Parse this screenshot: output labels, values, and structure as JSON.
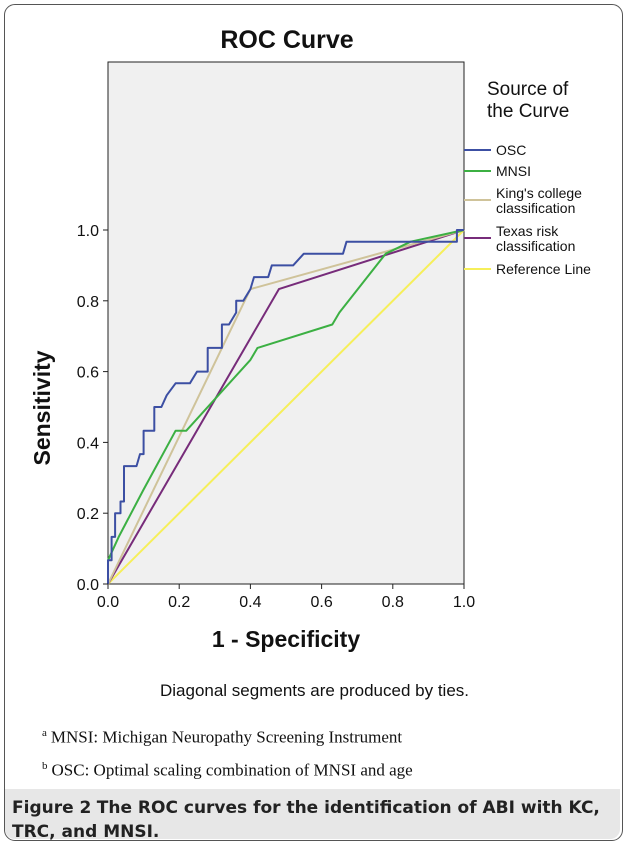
{
  "chart_data": {
    "type": "line",
    "title": "ROC Curve",
    "xlabel": "1 - Specificity",
    "ylabel": "Sensitivity",
    "xlim": [
      0,
      1
    ],
    "ylim": [
      0,
      1
    ],
    "xticks": [
      "0.0",
      "0.2",
      "0.4",
      "0.6",
      "0.8",
      "1.0"
    ],
    "yticks": [
      "0.0",
      "0.2",
      "0.4",
      "0.6",
      "0.8",
      "1.0"
    ],
    "grid": false,
    "legend_title": "Source of the Curve",
    "legend_position": "right",
    "series": [
      {
        "name": "OSC",
        "color": "#3c4fa3",
        "points": [
          [
            0,
            0
          ],
          [
            0,
            0.067
          ],
          [
            0.01,
            0.067
          ],
          [
            0.01,
            0.133
          ],
          [
            0.02,
            0.133
          ],
          [
            0.02,
            0.2
          ],
          [
            0.035,
            0.2
          ],
          [
            0.035,
            0.233
          ],
          [
            0.045,
            0.233
          ],
          [
            0.045,
            0.333
          ],
          [
            0.08,
            0.333
          ],
          [
            0.09,
            0.367
          ],
          [
            0.1,
            0.367
          ],
          [
            0.1,
            0.433
          ],
          [
            0.13,
            0.433
          ],
          [
            0.13,
            0.5
          ],
          [
            0.15,
            0.5
          ],
          [
            0.165,
            0.533
          ],
          [
            0.19,
            0.567
          ],
          [
            0.23,
            0.567
          ],
          [
            0.25,
            0.6
          ],
          [
            0.28,
            0.6
          ],
          [
            0.28,
            0.667
          ],
          [
            0.32,
            0.667
          ],
          [
            0.32,
            0.733
          ],
          [
            0.34,
            0.733
          ],
          [
            0.36,
            0.767
          ],
          [
            0.36,
            0.8
          ],
          [
            0.38,
            0.8
          ],
          [
            0.4,
            0.833
          ],
          [
            0.41,
            0.867
          ],
          [
            0.45,
            0.867
          ],
          [
            0.46,
            0.9
          ],
          [
            0.52,
            0.9
          ],
          [
            0.55,
            0.933
          ],
          [
            0.66,
            0.933
          ],
          [
            0.67,
            0.967
          ],
          [
            0.89,
            0.967
          ],
          [
            0.98,
            0.967
          ],
          [
            0.98,
            1.0
          ],
          [
            1.0,
            1.0
          ]
        ]
      },
      {
        "name": "MNSI",
        "color": "#3cb043",
        "points": [
          [
            0,
            0
          ],
          [
            0,
            0.067
          ],
          [
            0.03,
            0.133
          ],
          [
            0.1,
            0.267
          ],
          [
            0.19,
            0.433
          ],
          [
            0.22,
            0.433
          ],
          [
            0.4,
            0.633
          ],
          [
            0.42,
            0.667
          ],
          [
            0.63,
            0.733
          ],
          [
            0.65,
            0.767
          ],
          [
            0.78,
            0.933
          ],
          [
            0.85,
            0.967
          ],
          [
            1.0,
            1.0
          ]
        ]
      },
      {
        "name": "King's college classification",
        "color": "#cfc39a",
        "points": [
          [
            0,
            0
          ],
          [
            0.4,
            0.833
          ],
          [
            1.0,
            1.0
          ]
        ]
      },
      {
        "name": "Texas risk classification",
        "color": "#772c7a",
        "points": [
          [
            0,
            0
          ],
          [
            0.48,
            0.833
          ],
          [
            1.0,
            1.0
          ]
        ]
      },
      {
        "name": "Reference Line",
        "color": "#f6ef5a",
        "points": [
          [
            0,
            0
          ],
          [
            1.0,
            1.0
          ]
        ]
      }
    ]
  },
  "notes": {
    "ties": "Diagonal segments are produced by ties.",
    "fn_a_mark": "a",
    "fn_a_text": "MNSI: Michigan Neuropathy Screening Instrument",
    "fn_b_mark": "b",
    "fn_b_text": "OSC: Optimal scaling combination of MNSI and age"
  },
  "caption": {
    "label": "Figure 2",
    "text": "The ROC curves for the identification of ABI with KC, TRC, and MNSI."
  }
}
